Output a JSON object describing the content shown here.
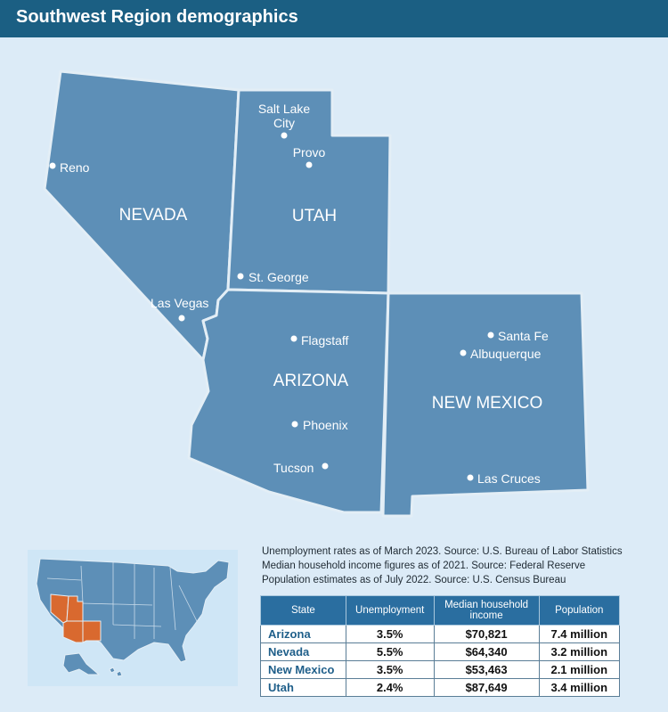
{
  "header": {
    "title": "Southwest Region demographics"
  },
  "colors": {
    "header_bg": "#1b5f83",
    "background": "#dcebf7",
    "state_fill": "#5d8fb7",
    "state_border": "#e3eef6",
    "highlight": "#d9692f",
    "table_header": "#2a6ea0"
  },
  "map": {
    "states": [
      {
        "name": "NEVADA"
      },
      {
        "name": "UTAH"
      },
      {
        "name": "ARIZONA"
      },
      {
        "name": "NEW MEXICO"
      }
    ],
    "cities": [
      {
        "name": "Reno"
      },
      {
        "name": "Las Vegas"
      },
      {
        "name": "Salt Lake City",
        "line1": "Salt Lake",
        "line2": "City"
      },
      {
        "name": "Provo"
      },
      {
        "name": "St. George"
      },
      {
        "name": "Flagstaff"
      },
      {
        "name": "Phoenix"
      },
      {
        "name": "Tucson"
      },
      {
        "name": "Santa Fe"
      },
      {
        "name": "Albuquerque"
      },
      {
        "name": "Las Cruces"
      }
    ]
  },
  "inset_map": {
    "highlighted_states": [
      "Nevada",
      "Utah",
      "Arizona",
      "New Mexico"
    ]
  },
  "notes": [
    "Unemployment rates as of March 2023. Source: U.S. Bureau of Labor Statistics",
    "Median household income figures as of 2021. Source: Federal Reserve",
    "Population estimates as of July 2022. Source: U.S. Census Bureau"
  ],
  "table": {
    "headers": [
      "State",
      "Unemployment",
      "Median household income",
      "Population"
    ],
    "rows": [
      {
        "state": "Arizona",
        "unemployment": "3.5%",
        "income": "$70,821",
        "population": "7.4 million"
      },
      {
        "state": "Nevada",
        "unemployment": "5.5%",
        "income": "$64,340",
        "population": "3.2 million"
      },
      {
        "state": "New Mexico",
        "unemployment": "3.5%",
        "income": "$53,463",
        "population": "2.1 million"
      },
      {
        "state": "Utah",
        "unemployment": "2.4%",
        "income": "$87,649",
        "population": "3.4 million"
      }
    ]
  }
}
